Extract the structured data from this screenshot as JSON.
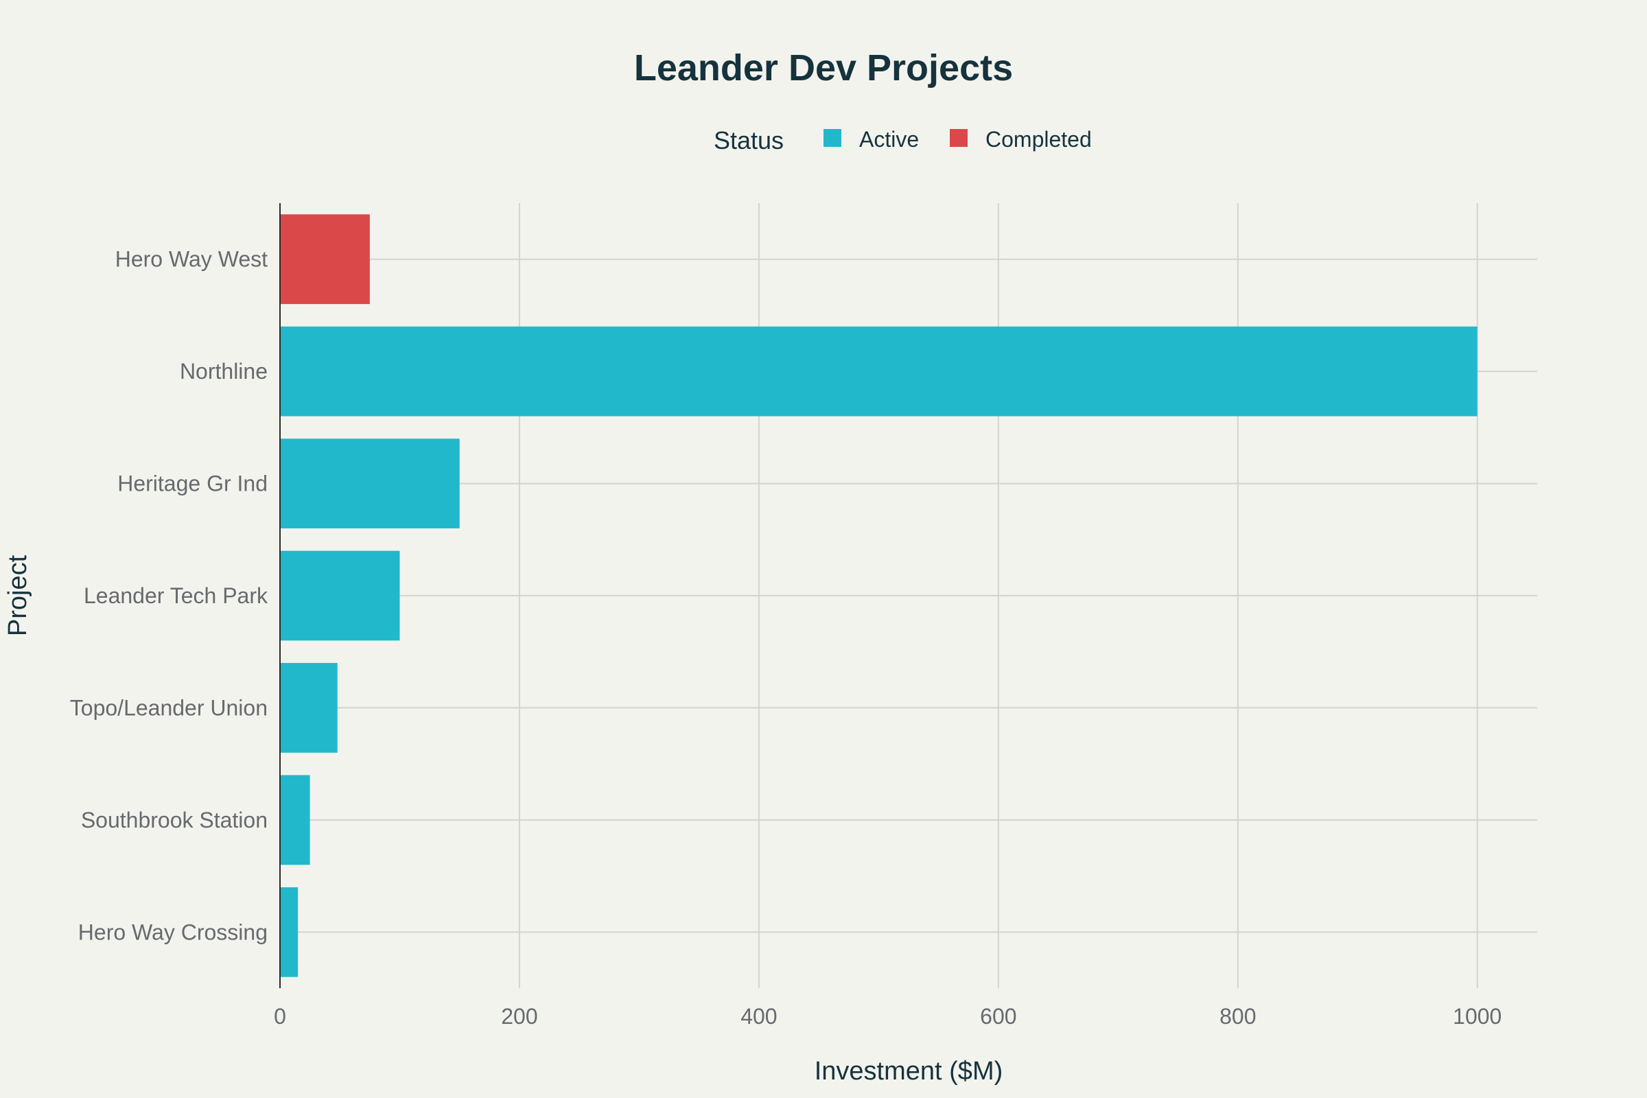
{
  "chart_data": {
    "type": "bar",
    "orientation": "horizontal",
    "title": "Leander Dev Projects",
    "xlabel": "Investment ($M)",
    "ylabel": "Project",
    "xlim": [
      0,
      1050
    ],
    "xticks": [
      0,
      200,
      400,
      600,
      800,
      1000
    ],
    "grid": true,
    "legend": {
      "title": "Status",
      "placement": "top-center",
      "entries": [
        {
          "name": "Active",
          "color": "#22b8cc"
        },
        {
          "name": "Completed",
          "color": "#db4849"
        }
      ]
    },
    "categories": [
      "Hero Way West",
      "Northline",
      "Heritage Gr Ind",
      "Leander Tech Park",
      "Topo/Leander Union",
      "Southbrook Station",
      "Hero Way Crossing"
    ],
    "values": [
      75,
      1000,
      150,
      100,
      48,
      25,
      15
    ],
    "status": [
      "Completed",
      "Active",
      "Active",
      "Active",
      "Active",
      "Active",
      "Active"
    ]
  }
}
